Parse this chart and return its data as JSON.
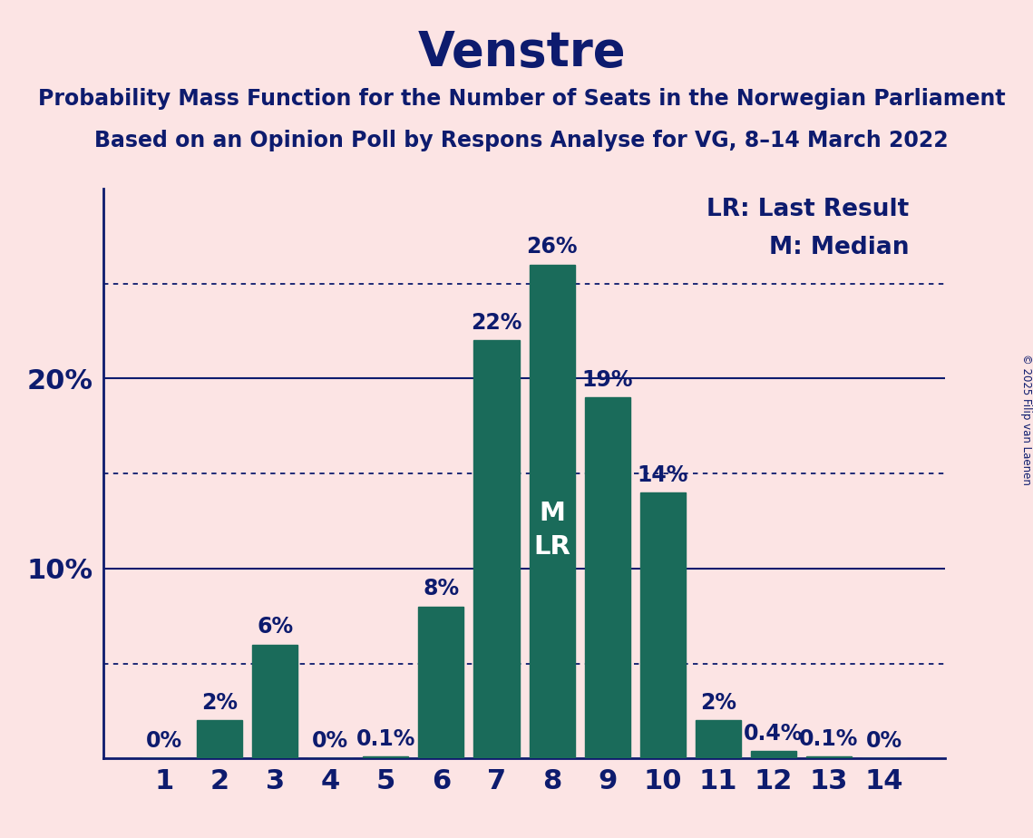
{
  "title": "Venstre",
  "subtitle1": "Probability Mass Function for the Number of Seats in the Norwegian Parliament",
  "subtitle2": "Based on an Opinion Poll by Respons Analyse for VG, 8–14 March 2022",
  "copyright": "© 2025 Filip van Laenen",
  "categories": [
    1,
    2,
    3,
    4,
    5,
    6,
    7,
    8,
    9,
    10,
    11,
    12,
    13,
    14
  ],
  "values": [
    0.0,
    2.0,
    6.0,
    0.0,
    0.1,
    8.0,
    22.0,
    26.0,
    19.0,
    14.0,
    2.0,
    0.4,
    0.1,
    0.0
  ],
  "labels": [
    "0%",
    "2%",
    "6%",
    "0%",
    "0.1%",
    "8%",
    "22%",
    "26%",
    "19%",
    "14%",
    "2%",
    "0.4%",
    "0.1%",
    "0%"
  ],
  "bar_color": "#1a6b5a",
  "background_color": "#fce4e4",
  "text_color": "#0d1b6e",
  "shown_yticks": [
    10,
    20
  ],
  "shown_ytick_labels": [
    "10%",
    "20%"
  ],
  "dotted_lines": [
    5,
    15,
    25
  ],
  "solid_lines": [
    10,
    20
  ],
  "legend_lr": "LR: Last Result",
  "legend_m": "M: Median",
  "median_bar": 8,
  "lr_bar": 8,
  "title_fontsize": 38,
  "subtitle_fontsize": 17,
  "bar_label_fontsize": 17,
  "axis_tick_fontsize": 22,
  "legend_fontsize": 19,
  "mlr_fontsize": 21,
  "ylim": [
    0,
    30
  ],
  "bar_width": 0.82
}
